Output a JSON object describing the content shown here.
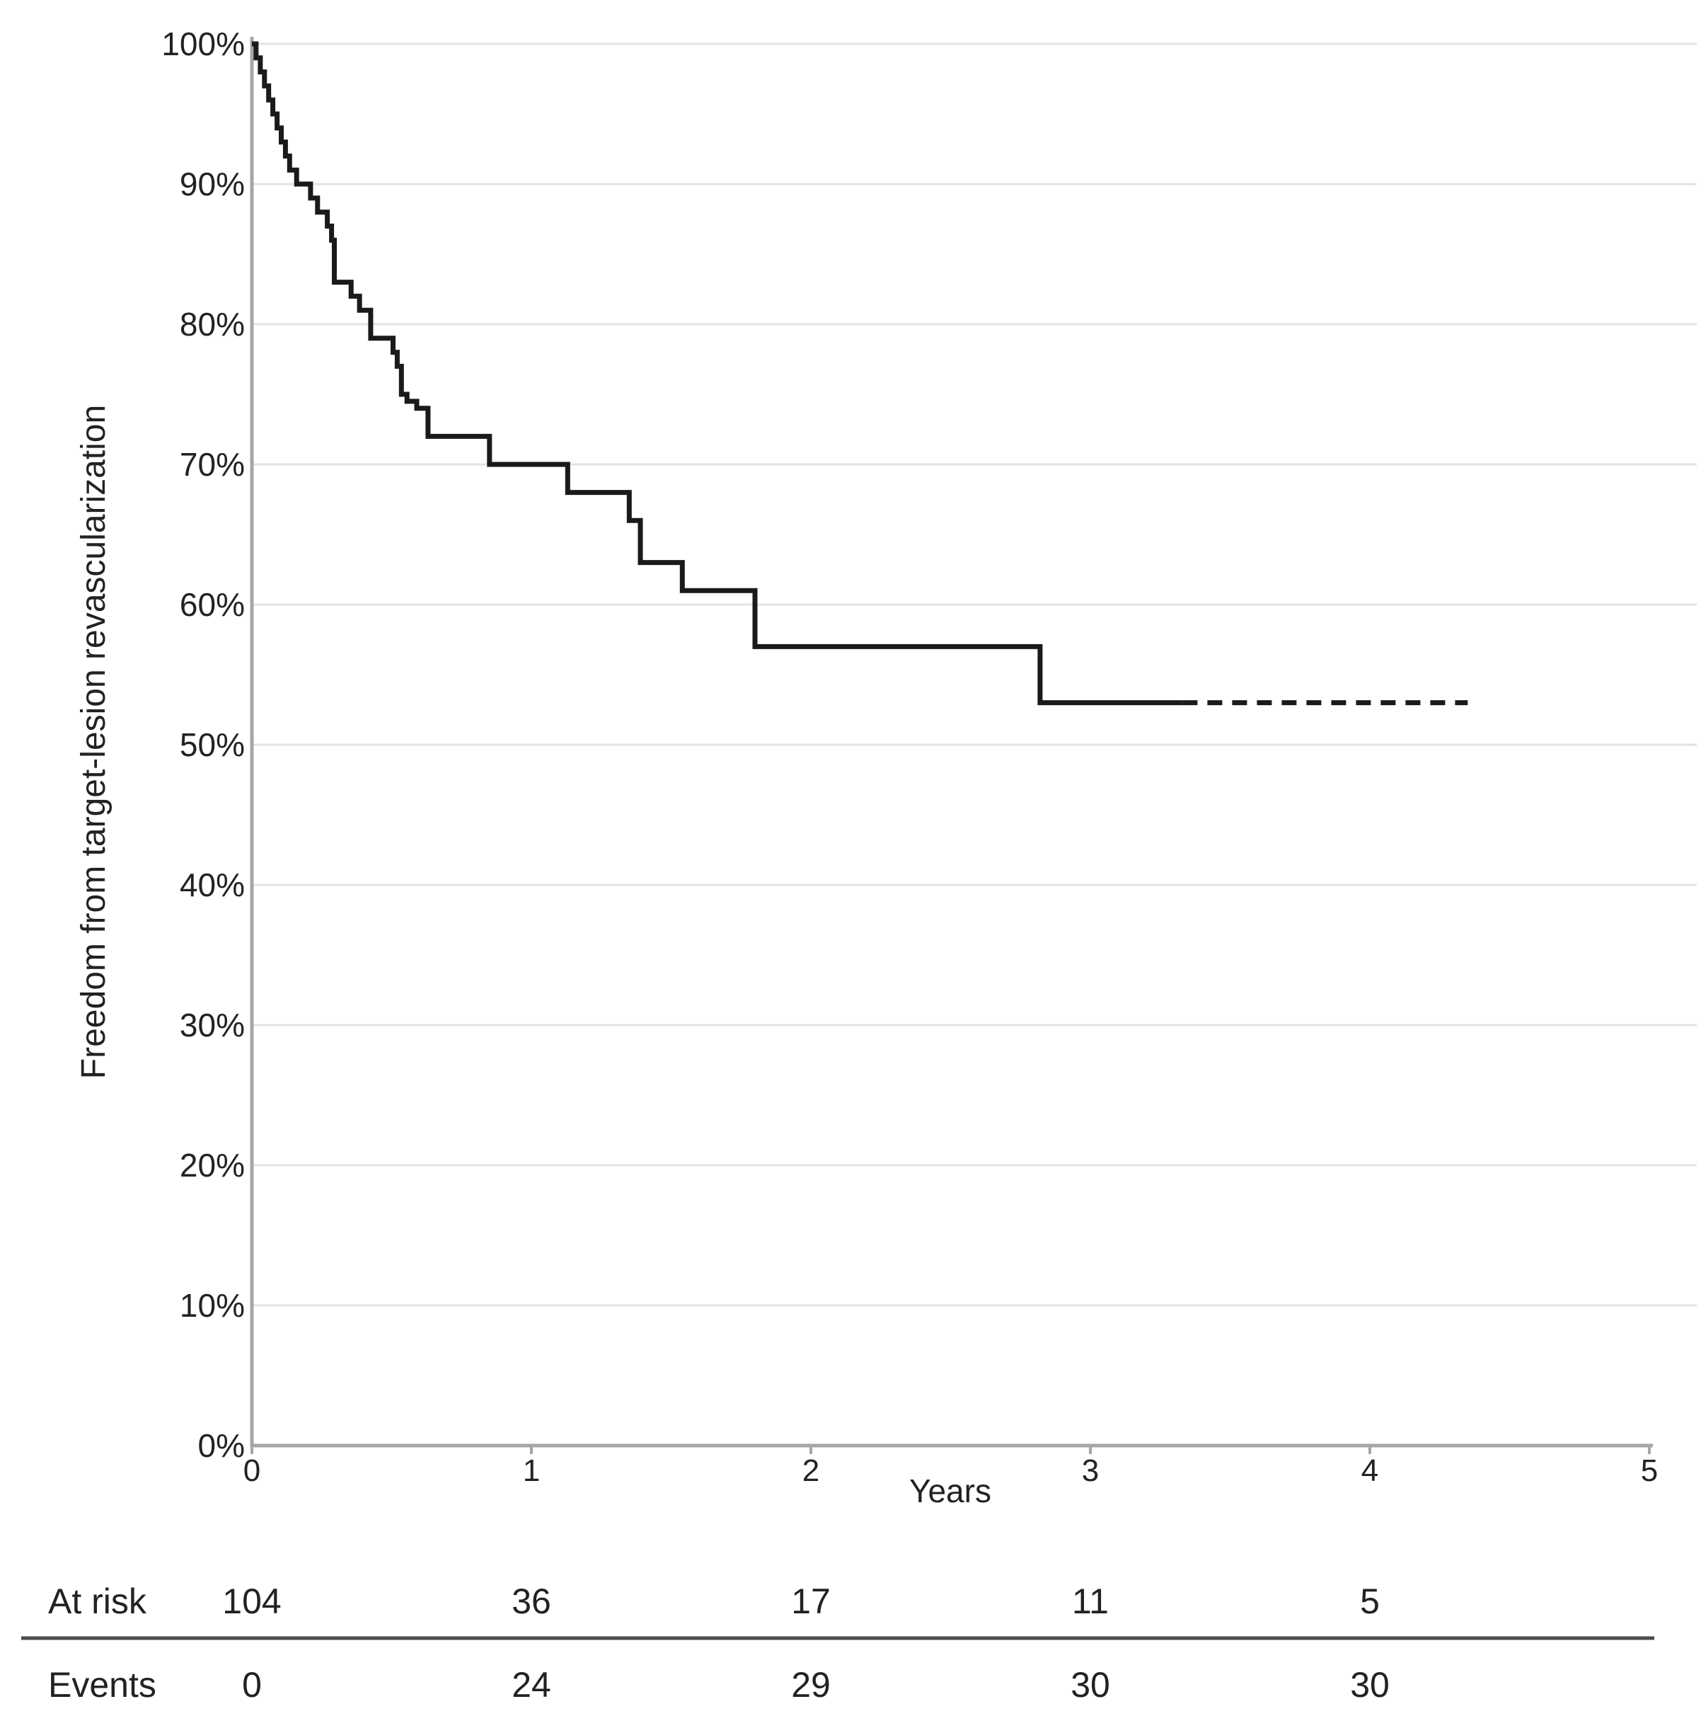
{
  "chart_data": {
    "type": "line",
    "subtype": "kaplan-meier-step",
    "title": "",
    "xlabel": "Years",
    "ylabel": "Freedom from target-lesion revascularization",
    "xlim": [
      0,
      5
    ],
    "ylim": [
      0,
      100
    ],
    "grid": "horizontal",
    "x_ticks": [
      {
        "value": 0,
        "label": "0"
      },
      {
        "value": 1,
        "label": "1"
      },
      {
        "value": 2,
        "label": "2"
      },
      {
        "value": 3,
        "label": "3"
      },
      {
        "value": 4,
        "label": "4"
      },
      {
        "value": 5,
        "label": "5"
      }
    ],
    "y_ticks": [
      {
        "value": 0,
        "label": "0%"
      },
      {
        "value": 10,
        "label": "10%"
      },
      {
        "value": 20,
        "label": "20%"
      },
      {
        "value": 30,
        "label": "30%"
      },
      {
        "value": 40,
        "label": "40%"
      },
      {
        "value": 50,
        "label": "50%"
      },
      {
        "value": 60,
        "label": "60%"
      },
      {
        "value": 70,
        "label": "70%"
      },
      {
        "value": 80,
        "label": "80%"
      },
      {
        "value": 90,
        "label": "90%"
      },
      {
        "value": 100,
        "label": "100%"
      }
    ],
    "series": [
      {
        "style": "solid",
        "color": "#1a1a1a",
        "steps": [
          [
            0,
            100
          ],
          [
            0.015,
            99
          ],
          [
            0.03,
            98
          ],
          [
            0.045,
            97
          ],
          [
            0.06,
            96
          ],
          [
            0.075,
            95
          ],
          [
            0.09,
            94
          ],
          [
            0.105,
            93
          ],
          [
            0.12,
            92
          ],
          [
            0.135,
            91
          ],
          [
            0.16,
            90
          ],
          [
            0.21,
            89
          ],
          [
            0.235,
            88
          ],
          [
            0.27,
            87
          ],
          [
            0.285,
            86
          ],
          [
            0.295,
            83
          ],
          [
            0.355,
            82
          ],
          [
            0.385,
            81
          ],
          [
            0.425,
            79
          ],
          [
            0.505,
            78
          ],
          [
            0.52,
            77
          ],
          [
            0.535,
            75
          ],
          [
            0.555,
            74.5
          ],
          [
            0.59,
            74
          ],
          [
            0.63,
            72
          ],
          [
            0.85,
            70
          ],
          [
            1.13,
            68
          ],
          [
            1.35,
            66
          ],
          [
            1.39,
            63
          ],
          [
            1.54,
            61
          ],
          [
            1.8,
            57
          ],
          [
            2.82,
            53
          ],
          [
            3.33,
            53
          ]
        ]
      },
      {
        "style": "dashed",
        "color": "#1a1a1a",
        "steps": [
          [
            3.33,
            53
          ],
          [
            4.35,
            53
          ]
        ]
      }
    ],
    "risk_table": {
      "times": [
        0,
        1,
        2,
        3,
        4
      ],
      "rows": [
        {
          "label": "At risk",
          "values": [
            "104",
            "36",
            "17",
            "11",
            "5"
          ]
        },
        {
          "label": "Events",
          "values": [
            "0",
            "24",
            "29",
            "30",
            "30"
          ]
        }
      ]
    },
    "colors": {
      "curve": "#1a1a1a",
      "gridline": "#e3e3e3",
      "axis": "#a6a6a6",
      "separator": "#4d4d4d",
      "text": "#222222"
    }
  }
}
